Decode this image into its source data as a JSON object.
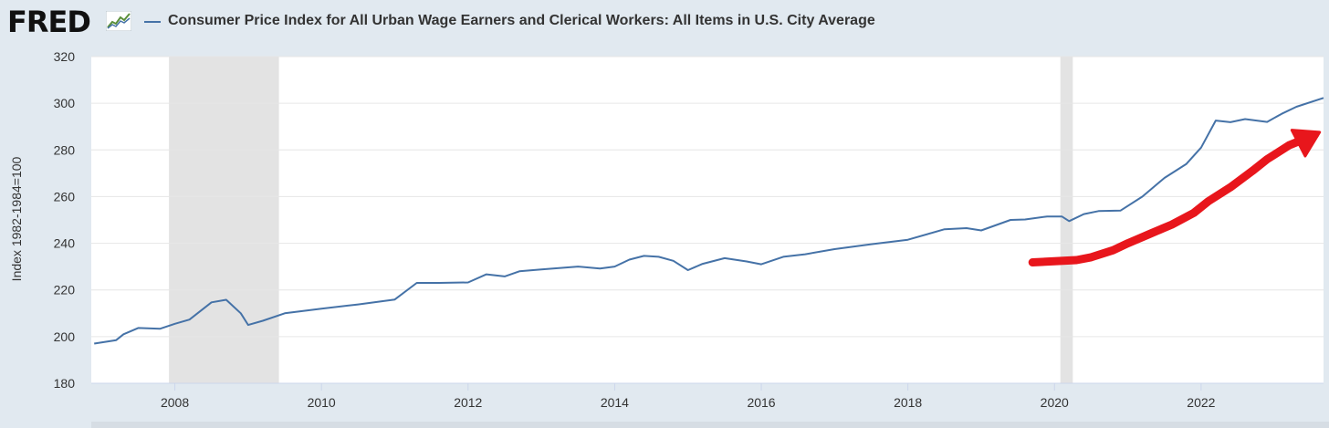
{
  "header": {
    "logo_text": "FRED",
    "logo_icon": "fred-chart-icon",
    "legend_label": "Consumer Price Index for All Urban Wage Earners and Clerical Workers: All Items in U.S. City Average"
  },
  "colors": {
    "series": "#4572a7",
    "recession": "#e3e3e3",
    "annotation_arrow": "#e8161c",
    "grid": "#e6e6e6",
    "background": "#e1e9f0"
  },
  "chart_data": {
    "type": "line",
    "title": "",
    "ylabel": "Index 1982-1984=100",
    "xlabel": "",
    "xlim": [
      2006.86,
      2023.67
    ],
    "ylim": [
      180,
      320
    ],
    "x_ticks": [
      "2008",
      "2010",
      "2012",
      "2014",
      "2016",
      "2018",
      "2020",
      "2022"
    ],
    "y_ticks": [
      "180",
      "200",
      "220",
      "240",
      "260",
      "280",
      "300",
      "320"
    ],
    "grid": true,
    "recessions": [
      [
        2007.92,
        2009.42
      ],
      [
        2020.08,
        2020.25
      ]
    ],
    "series": [
      {
        "name": "Consumer Price Index for All Urban Wage Earners and Clerical Workers: All Items in U.S. City Average",
        "x": [
          2006.9,
          2007.2,
          2007.3,
          2007.5,
          2007.8,
          2008.0,
          2008.2,
          2008.5,
          2008.7,
          2008.9,
          2009.0,
          2009.2,
          2009.5,
          2010.0,
          2010.5,
          2011.0,
          2011.3,
          2011.6,
          2012.0,
          2012.25,
          2012.5,
          2012.7,
          2013.0,
          2013.5,
          2013.8,
          2014.0,
          2014.2,
          2014.4,
          2014.6,
          2014.8,
          2015.0,
          2015.2,
          2015.5,
          2015.8,
          2016.0,
          2016.3,
          2016.6,
          2017.0,
          2017.5,
          2018.0,
          2018.5,
          2018.8,
          2019.0,
          2019.4,
          2019.6,
          2019.9,
          2020.1,
          2020.2,
          2020.4,
          2020.6,
          2020.9,
          2021.2,
          2021.5,
          2021.8,
          2022.0,
          2022.2,
          2022.4,
          2022.6,
          2022.9,
          2023.1,
          2023.3,
          2023.67
        ],
        "y": [
          197,
          198.5,
          201,
          203.7,
          203.4,
          205.5,
          207.3,
          214.7,
          215.8,
          210,
          205,
          206.8,
          210,
          212,
          213.8,
          215.9,
          223,
          223,
          223.2,
          226.7,
          225.8,
          228,
          228.8,
          230,
          229.2,
          230,
          233,
          234.6,
          234.2,
          232.5,
          228.5,
          231.2,
          233.6,
          232.2,
          231,
          234.2,
          235.3,
          237.5,
          239.6,
          241.5,
          246,
          246.5,
          245.5,
          250,
          250.2,
          251.5,
          251.5,
          249.5,
          252.5,
          253.8,
          254,
          260,
          268,
          274,
          281,
          292.6,
          291.9,
          293.2,
          292,
          295.5,
          298.5,
          302.3
        ]
      }
    ],
    "annotations": [
      {
        "type": "hand-drawn-arrow",
        "color": "#e8161c",
        "x": [
          2019.7,
          2020.0,
          2020.3,
          2020.5,
          2020.8,
          2021.0,
          2021.3,
          2021.6,
          2021.9,
          2022.1,
          2022.4,
          2022.7,
          2022.9,
          2023.2,
          2023.55
        ],
        "y": [
          231.8,
          232.3,
          232.8,
          234,
          237,
          240,
          244,
          248,
          253,
          258,
          264,
          271,
          276,
          282,
          286.5
        ]
      }
    ]
  }
}
